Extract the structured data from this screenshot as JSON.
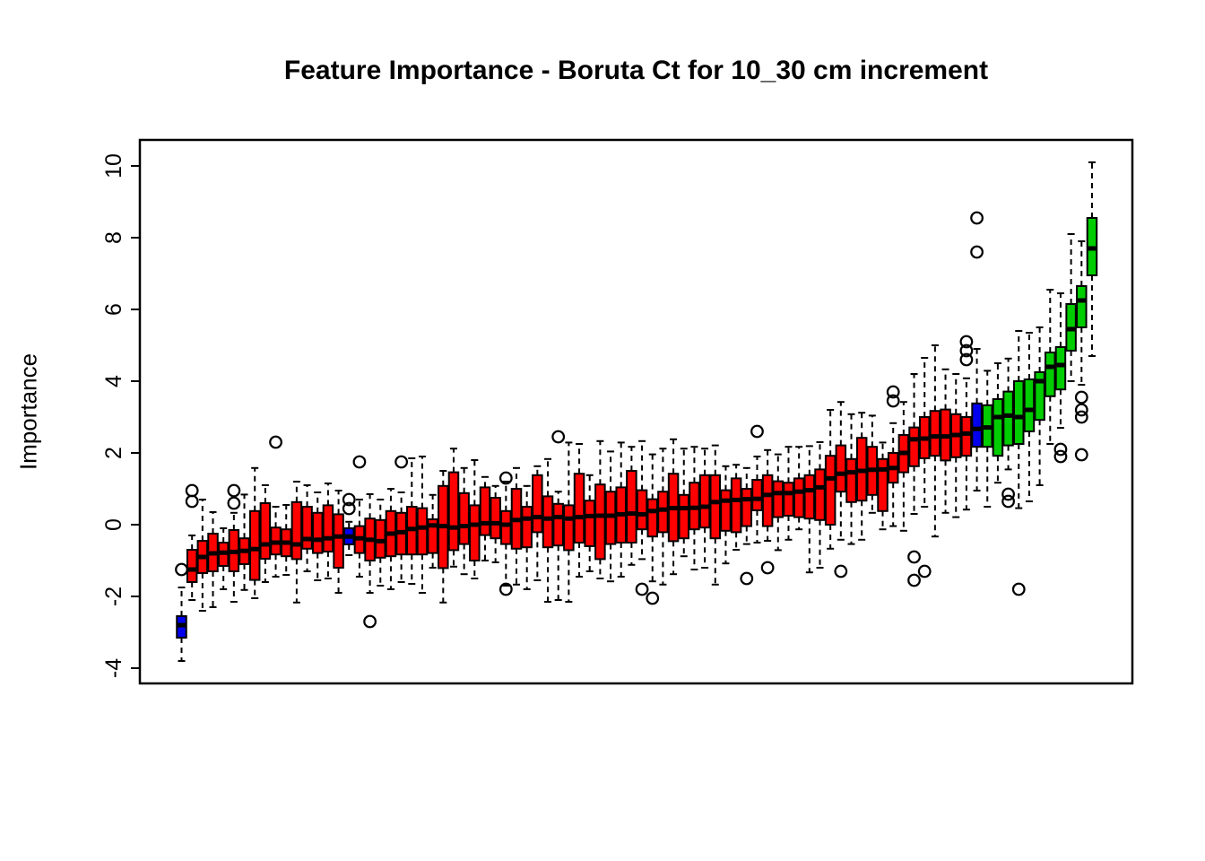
{
  "title": "Feature Importance - Boruta Ct for 10_30 cm increment",
  "y_axis": {
    "label": "Importance",
    "ticks": [
      -4,
      -2,
      0,
      2,
      4,
      6,
      8,
      10
    ]
  },
  "colors": {
    "rejected": "#FF0000",
    "confirmed": "#00CD00",
    "shadow": "#0000EE",
    "frame": "#000000",
    "median": "#000000",
    "background": "#FFFFFF"
  },
  "chart_data": {
    "type": "boxplot",
    "title": "Feature Importance - Boruta Ct for 10_30 cm increment",
    "xlabel": "",
    "ylabel": "Importance",
    "ylim": [
      -4.4,
      10.75
    ],
    "yticks": [
      -4,
      -2,
      0,
      2,
      4,
      6,
      8,
      10
    ],
    "grid": false,
    "legend": null,
    "n_boxes": 88,
    "color_meaning": {
      "rejected": "red",
      "confirmed": "green",
      "shadow": "blue"
    },
    "boxes": [
      {
        "c": "shadow",
        "m": -2.8,
        "q1": -3.15,
        "q3": -2.55,
        "lo": -3.8,
        "hi": -1.75,
        "o": [
          -1.25
        ]
      },
      {
        "c": "rejected",
        "m": -1.25,
        "q1": -1.6,
        "q3": -0.7,
        "lo": -2.1,
        "hi": -0.3,
        "o": [
          0.95,
          0.65
        ]
      },
      {
        "c": "rejected",
        "m": -0.9,
        "q1": -1.35,
        "q3": -0.45,
        "lo": -2.4,
        "hi": 0.7,
        "o": []
      },
      {
        "c": "rejected",
        "m": -0.8,
        "q1": -1.3,
        "q3": -0.25,
        "lo": -2.3,
        "hi": 0.35,
        "o": []
      },
      {
        "c": "rejected",
        "m": -0.78,
        "q1": -1.15,
        "q3": -0.5,
        "lo": -1.8,
        "hi": -0.1,
        "o": []
      },
      {
        "c": "rejected",
        "m": -0.76,
        "q1": -1.3,
        "q3": -0.15,
        "lo": -2.15,
        "hi": 0.33,
        "o": [
          0.95,
          0.6
        ]
      },
      {
        "c": "rejected",
        "m": -0.73,
        "q1": -1.1,
        "q3": -0.38,
        "lo": -1.82,
        "hi": 0.84,
        "o": []
      },
      {
        "c": "rejected",
        "m": -0.68,
        "q1": -1.54,
        "q3": 0.38,
        "lo": -2.05,
        "hi": 1.58,
        "o": []
      },
      {
        "c": "rejected",
        "m": -0.55,
        "q1": -0.95,
        "q3": 0.6,
        "lo": -1.6,
        "hi": 1.1,
        "o": []
      },
      {
        "c": "rejected",
        "m": -0.5,
        "q1": -0.83,
        "q3": -0.08,
        "lo": -1.45,
        "hi": 0.5,
        "o": [
          2.3
        ]
      },
      {
        "c": "rejected",
        "m": -0.5,
        "q1": -0.88,
        "q3": -0.13,
        "lo": -1.4,
        "hi": 0.55,
        "o": []
      },
      {
        "c": "rejected",
        "m": -0.55,
        "q1": -0.96,
        "q3": 0.63,
        "lo": -2.17,
        "hi": 1.2,
        "o": []
      },
      {
        "c": "rejected",
        "m": -0.4,
        "q1": -0.67,
        "q3": 0.5,
        "lo": -1.3,
        "hi": 1.1,
        "o": []
      },
      {
        "c": "rejected",
        "m": -0.42,
        "q1": -0.79,
        "q3": 0.33,
        "lo": -1.55,
        "hi": 0.9,
        "o": []
      },
      {
        "c": "rejected",
        "m": -0.38,
        "q1": -0.75,
        "q3": 0.54,
        "lo": -1.5,
        "hi": 1.15,
        "o": []
      },
      {
        "c": "rejected",
        "m": -0.33,
        "q1": -1.2,
        "q3": 0.29,
        "lo": -1.9,
        "hi": 0.95,
        "o": []
      },
      {
        "c": "shadow",
        "m": -0.33,
        "q1": -0.55,
        "q3": -0.1,
        "lo": -0.85,
        "hi": 0.08,
        "o": [
          0.7,
          0.45
        ]
      },
      {
        "c": "rejected",
        "m": -0.38,
        "q1": -0.79,
        "q3": -0.04,
        "lo": -1.45,
        "hi": 0.7,
        "o": [
          1.75
        ]
      },
      {
        "c": "rejected",
        "m": -0.42,
        "q1": -1.0,
        "q3": 0.17,
        "lo": -1.9,
        "hi": 0.85,
        "o": [
          -2.7
        ]
      },
      {
        "c": "rejected",
        "m": -0.46,
        "q1": -0.92,
        "q3": 0.13,
        "lo": -1.7,
        "hi": 0.7,
        "o": []
      },
      {
        "c": "rejected",
        "m": -0.25,
        "q1": -0.88,
        "q3": 0.38,
        "lo": -1.8,
        "hi": 1.0,
        "o": []
      },
      {
        "c": "rejected",
        "m": -0.21,
        "q1": -0.83,
        "q3": 0.33,
        "lo": -1.6,
        "hi": 0.9,
        "o": [
          1.75
        ]
      },
      {
        "c": "rejected",
        "m": -0.12,
        "q1": -0.83,
        "q3": 0.5,
        "lo": -1.65,
        "hi": 1.85,
        "o": []
      },
      {
        "c": "rejected",
        "m": -0.08,
        "q1": -0.83,
        "q3": 0.46,
        "lo": -1.9,
        "hi": 1.9,
        "o": []
      },
      {
        "c": "rejected",
        "m": -0.02,
        "q1": -0.79,
        "q3": 0.15,
        "lo": -1.2,
        "hi": 0.83,
        "o": []
      },
      {
        "c": "rejected",
        "m": -0.04,
        "q1": -1.21,
        "q3": 1.08,
        "lo": -2.17,
        "hi": 1.5,
        "o": []
      },
      {
        "c": "rejected",
        "m": -0.08,
        "q1": -0.71,
        "q3": 1.46,
        "lo": -1.17,
        "hi": 2.12,
        "o": []
      },
      {
        "c": "rejected",
        "m": -0.04,
        "q1": -0.54,
        "q3": 0.88,
        "lo": -1.38,
        "hi": 1.58,
        "o": []
      },
      {
        "c": "rejected",
        "m": 0.0,
        "q1": -1.0,
        "q3": 0.54,
        "lo": -1.5,
        "hi": 1.8,
        "o": []
      },
      {
        "c": "rejected",
        "m": 0.04,
        "q1": -0.29,
        "q3": 1.04,
        "lo": -1.0,
        "hi": 1.33,
        "o": []
      },
      {
        "c": "rejected",
        "m": 0.04,
        "q1": -0.38,
        "q3": 0.75,
        "lo": -1.05,
        "hi": 1.08,
        "o": []
      },
      {
        "c": "rejected",
        "m": 0.0,
        "q1": -0.54,
        "q3": 0.38,
        "lo": -1.7,
        "hi": 1.2,
        "o": [
          1.3,
          -1.8
        ]
      },
      {
        "c": "rejected",
        "m": 0.13,
        "q1": -0.67,
        "q3": 1.0,
        "lo": -1.67,
        "hi": 1.58,
        "o": []
      },
      {
        "c": "rejected",
        "m": 0.17,
        "q1": -0.63,
        "q3": 0.5,
        "lo": -1.8,
        "hi": 1.08,
        "o": []
      },
      {
        "c": "rejected",
        "m": 0.21,
        "q1": -0.21,
        "q3": 1.38,
        "lo": -1.55,
        "hi": 1.63,
        "o": []
      },
      {
        "c": "rejected",
        "m": 0.17,
        "q1": -0.63,
        "q3": 0.79,
        "lo": -2.15,
        "hi": 1.83,
        "o": []
      },
      {
        "c": "rejected",
        "m": 0.21,
        "q1": -0.58,
        "q3": 0.58,
        "lo": -2.1,
        "hi": 0.92,
        "o": [
          2.45
        ]
      },
      {
        "c": "rejected",
        "m": 0.17,
        "q1": -0.71,
        "q3": 0.54,
        "lo": -2.15,
        "hi": 2.29,
        "o": []
      },
      {
        "c": "rejected",
        "m": 0.21,
        "q1": -0.5,
        "q3": 1.42,
        "lo": -1.45,
        "hi": 2.25,
        "o": []
      },
      {
        "c": "rejected",
        "m": 0.24,
        "q1": -0.6,
        "q3": 0.67,
        "lo": -1.3,
        "hi": 1.38,
        "o": []
      },
      {
        "c": "rejected",
        "m": 0.25,
        "q1": -0.96,
        "q3": 1.12,
        "lo": -1.5,
        "hi": 2.33,
        "o": []
      },
      {
        "c": "rejected",
        "m": 0.25,
        "q1": -0.54,
        "q3": 0.92,
        "lo": -1.58,
        "hi": 2.04,
        "o": []
      },
      {
        "c": "rejected",
        "m": 0.29,
        "q1": -0.5,
        "q3": 1.04,
        "lo": -1.45,
        "hi": 2.29,
        "o": []
      },
      {
        "c": "rejected",
        "m": 0.31,
        "q1": -0.5,
        "q3": 1.5,
        "lo": -1.12,
        "hi": 2.17,
        "o": []
      },
      {
        "c": "rejected",
        "m": 0.29,
        "q1": -0.13,
        "q3": 0.96,
        "lo": -0.96,
        "hi": 2.33,
        "o": [
          -1.8
        ]
      },
      {
        "c": "rejected",
        "m": 0.38,
        "q1": -0.33,
        "q3": 0.71,
        "lo": -1.58,
        "hi": 1.96,
        "o": [
          -2.05
        ]
      },
      {
        "c": "rejected",
        "m": 0.42,
        "q1": -0.21,
        "q3": 0.92,
        "lo": -1.67,
        "hi": 2.12,
        "o": []
      },
      {
        "c": "rejected",
        "m": 0.46,
        "q1": -0.46,
        "q3": 1.42,
        "lo": -1.38,
        "hi": 2.38,
        "o": []
      },
      {
        "c": "rejected",
        "m": 0.46,
        "q1": -0.38,
        "q3": 0.83,
        "lo": -0.88,
        "hi": 2.12,
        "o": []
      },
      {
        "c": "rejected",
        "m": 0.47,
        "q1": -0.13,
        "q3": 1.17,
        "lo": -1.25,
        "hi": 2.17,
        "o": []
      },
      {
        "c": "rejected",
        "m": 0.5,
        "q1": -0.08,
        "q3": 1.38,
        "lo": -1.2,
        "hi": 2.12,
        "o": []
      },
      {
        "c": "rejected",
        "m": 0.63,
        "q1": -0.38,
        "q3": 1.38,
        "lo": -1.67,
        "hi": 2.21,
        "o": []
      },
      {
        "c": "rejected",
        "m": 0.67,
        "q1": -0.17,
        "q3": 0.96,
        "lo": -1.08,
        "hi": 1.63,
        "o": []
      },
      {
        "c": "rejected",
        "m": 0.69,
        "q1": -0.21,
        "q3": 1.29,
        "lo": -0.7,
        "hi": 1.67,
        "o": []
      },
      {
        "c": "rejected",
        "m": 0.71,
        "q1": -0.04,
        "q3": 1.0,
        "lo": -0.54,
        "hi": 1.58,
        "o": [
          -1.5
        ]
      },
      {
        "c": "rejected",
        "m": 0.72,
        "q1": 0.4,
        "q3": 1.25,
        "lo": -0.5,
        "hi": 1.9,
        "o": [
          2.6
        ]
      },
      {
        "c": "rejected",
        "m": 0.83,
        "q1": -0.04,
        "q3": 1.38,
        "lo": -0.45,
        "hi": 2.08,
        "o": [
          -1.2
        ]
      },
      {
        "c": "rejected",
        "m": 0.88,
        "q1": 0.21,
        "q3": 1.21,
        "lo": -0.71,
        "hi": 1.96,
        "o": []
      },
      {
        "c": "rejected",
        "m": 0.88,
        "q1": 0.25,
        "q3": 1.17,
        "lo": -0.42,
        "hi": 2.17,
        "o": []
      },
      {
        "c": "rejected",
        "m": 0.92,
        "q1": 0.21,
        "q3": 1.29,
        "lo": -0.13,
        "hi": 2.17,
        "o": []
      },
      {
        "c": "rejected",
        "m": 0.96,
        "q1": 0.17,
        "q3": 1.38,
        "lo": -1.33,
        "hi": 2.19,
        "o": []
      },
      {
        "c": "rejected",
        "m": 1.04,
        "q1": 0.13,
        "q3": 1.54,
        "lo": -1.2,
        "hi": 2.3,
        "o": []
      },
      {
        "c": "rejected",
        "m": 1.29,
        "q1": 0.0,
        "q3": 1.92,
        "lo": -0.67,
        "hi": 3.2,
        "o": []
      },
      {
        "c": "rejected",
        "m": 1.42,
        "q1": 0.92,
        "q3": 2.21,
        "lo": -0.42,
        "hi": 3.42,
        "o": [
          -1.3
        ]
      },
      {
        "c": "rejected",
        "m": 1.46,
        "q1": 0.63,
        "q3": 1.83,
        "lo": -0.54,
        "hi": 3.08,
        "o": []
      },
      {
        "c": "rejected",
        "m": 1.5,
        "q1": 0.67,
        "q3": 2.42,
        "lo": -0.42,
        "hi": 3.12,
        "o": []
      },
      {
        "c": "rejected",
        "m": 1.53,
        "q1": 0.83,
        "q3": 2.17,
        "lo": 0.33,
        "hi": 3.04,
        "o": []
      },
      {
        "c": "rejected",
        "m": 1.54,
        "q1": 0.38,
        "q3": 1.83,
        "lo": -0.13,
        "hi": 2.29,
        "o": []
      },
      {
        "c": "rejected",
        "m": 1.58,
        "q1": 1.17,
        "q3": 2.0,
        "lo": -0.04,
        "hi": 2.83,
        "o": [
          3.7,
          3.45
        ]
      },
      {
        "c": "rejected",
        "m": 2.0,
        "q1": 1.46,
        "q3": 2.5,
        "lo": -0.17,
        "hi": 3.42,
        "o": []
      },
      {
        "c": "rejected",
        "m": 2.38,
        "q1": 1.63,
        "q3": 2.71,
        "lo": 0.3,
        "hi": 4.2,
        "o": [
          -0.9,
          -1.55
        ]
      },
      {
        "c": "rejected",
        "m": 2.4,
        "q1": 1.85,
        "q3": 3.0,
        "lo": 0.5,
        "hi": 4.65,
        "o": [
          -1.3
        ]
      },
      {
        "c": "rejected",
        "m": 2.46,
        "q1": 1.92,
        "q3": 3.17,
        "lo": -0.33,
        "hi": 5.0,
        "o": []
      },
      {
        "c": "rejected",
        "m": 2.46,
        "q1": 1.79,
        "q3": 3.21,
        "lo": 0.33,
        "hi": 4.33,
        "o": []
      },
      {
        "c": "rejected",
        "m": 2.5,
        "q1": 1.88,
        "q3": 3.08,
        "lo": 0.21,
        "hi": 4.2,
        "o": []
      },
      {
        "c": "rejected",
        "m": 2.54,
        "q1": 1.92,
        "q3": 3.0,
        "lo": 0.42,
        "hi": 4.08,
        "o": [
          5.1,
          4.85,
          4.6
        ]
      },
      {
        "c": "shadow",
        "m": 2.67,
        "q1": 2.17,
        "q3": 3.38,
        "lo": 0.95,
        "hi": 4.9,
        "o": [
          8.55,
          7.6
        ]
      },
      {
        "c": "confirmed",
        "m": 2.71,
        "q1": 2.17,
        "q3": 3.33,
        "lo": 0.5,
        "hi": 4.29,
        "o": []
      },
      {
        "c": "confirmed",
        "m": 3.0,
        "q1": 1.92,
        "q3": 3.5,
        "lo": 1.17,
        "hi": 4.5,
        "o": []
      },
      {
        "c": "confirmed",
        "m": 3.04,
        "q1": 2.21,
        "q3": 3.71,
        "lo": 1.54,
        "hi": 4.63,
        "o": [
          0.85,
          0.65
        ]
      },
      {
        "c": "confirmed",
        "m": 3.0,
        "q1": 2.25,
        "q3": 4.0,
        "lo": 0.46,
        "hi": 5.4,
        "o": [
          -1.8
        ]
      },
      {
        "c": "confirmed",
        "m": 3.2,
        "q1": 2.6,
        "q3": 4.05,
        "lo": 0.65,
        "hi": 5.35,
        "o": []
      },
      {
        "c": "confirmed",
        "m": 4.0,
        "q1": 2.92,
        "q3": 4.25,
        "lo": 1.1,
        "hi": 5.5,
        "o": []
      },
      {
        "c": "confirmed",
        "m": 4.4,
        "q1": 3.58,
        "q3": 4.8,
        "lo": 2.25,
        "hi": 6.55,
        "o": []
      },
      {
        "c": "confirmed",
        "m": 4.45,
        "q1": 3.77,
        "q3": 4.95,
        "lo": 2.7,
        "hi": 6.45,
        "o": [
          2.1,
          1.9
        ]
      },
      {
        "c": "confirmed",
        "m": 5.45,
        "q1": 4.85,
        "q3": 6.15,
        "lo": 4.0,
        "hi": 8.1,
        "o": []
      },
      {
        "c": "confirmed",
        "m": 6.25,
        "q1": 5.5,
        "q3": 6.65,
        "lo": 3.9,
        "hi": 7.9,
        "o": [
          3.55,
          3.2,
          3.0,
          1.95
        ]
      },
      {
        "c": "confirmed",
        "m": 7.7,
        "q1": 6.95,
        "q3": 8.55,
        "lo": 4.7,
        "hi": 10.1,
        "o": []
      }
    ]
  }
}
